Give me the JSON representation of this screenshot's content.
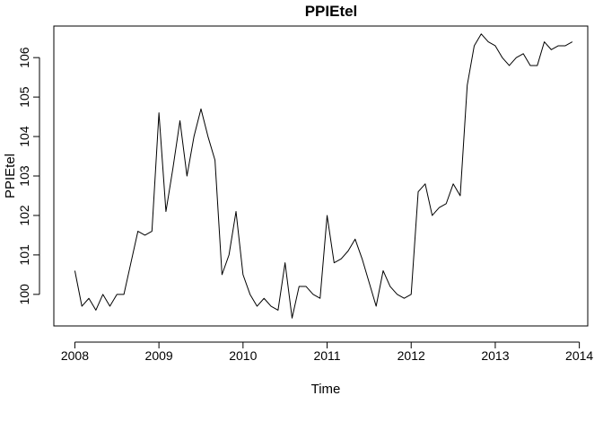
{
  "chart_data": {
    "type": "line",
    "title": "PPIEtel",
    "xlabel": "Time",
    "ylabel": "PPIEtel",
    "xlim": [
      2007.75,
      2014.1
    ],
    "ylim": [
      99.2,
      106.8
    ],
    "x_ticks": [
      2008,
      2009,
      2010,
      2011,
      2012,
      2013,
      2014
    ],
    "y_ticks": [
      100,
      101,
      102,
      103,
      104,
      105,
      106
    ],
    "grid": false,
    "legend": "none",
    "series": [
      {
        "x_start": 2008,
        "frequency": 12,
        "values": [
          100.6,
          99.7,
          99.9,
          99.6,
          100.0,
          99.7,
          100.0,
          100.0,
          100.8,
          101.6,
          101.5,
          101.6,
          104.6,
          102.1,
          103.2,
          104.4,
          103.0,
          104.0,
          104.7,
          104.0,
          103.4,
          100.5,
          101.0,
          102.1,
          100.5,
          100.0,
          99.7,
          99.9,
          99.7,
          99.6,
          100.8,
          99.4,
          100.2,
          100.2,
          100.0,
          99.9,
          102.0,
          100.8,
          100.9,
          101.1,
          101.4,
          100.9,
          100.3,
          99.7,
          100.6,
          100.2,
          100.0,
          99.9,
          100.0,
          102.6,
          102.8,
          102.0,
          102.2,
          102.3,
          102.8,
          102.5,
          105.3,
          106.3,
          106.6,
          106.4,
          106.3,
          106.0,
          105.8,
          106.0,
          106.1,
          105.8,
          105.8,
          106.4,
          106.2,
          106.3,
          106.3,
          106.4
        ],
        "color": "#000000"
      }
    ]
  }
}
